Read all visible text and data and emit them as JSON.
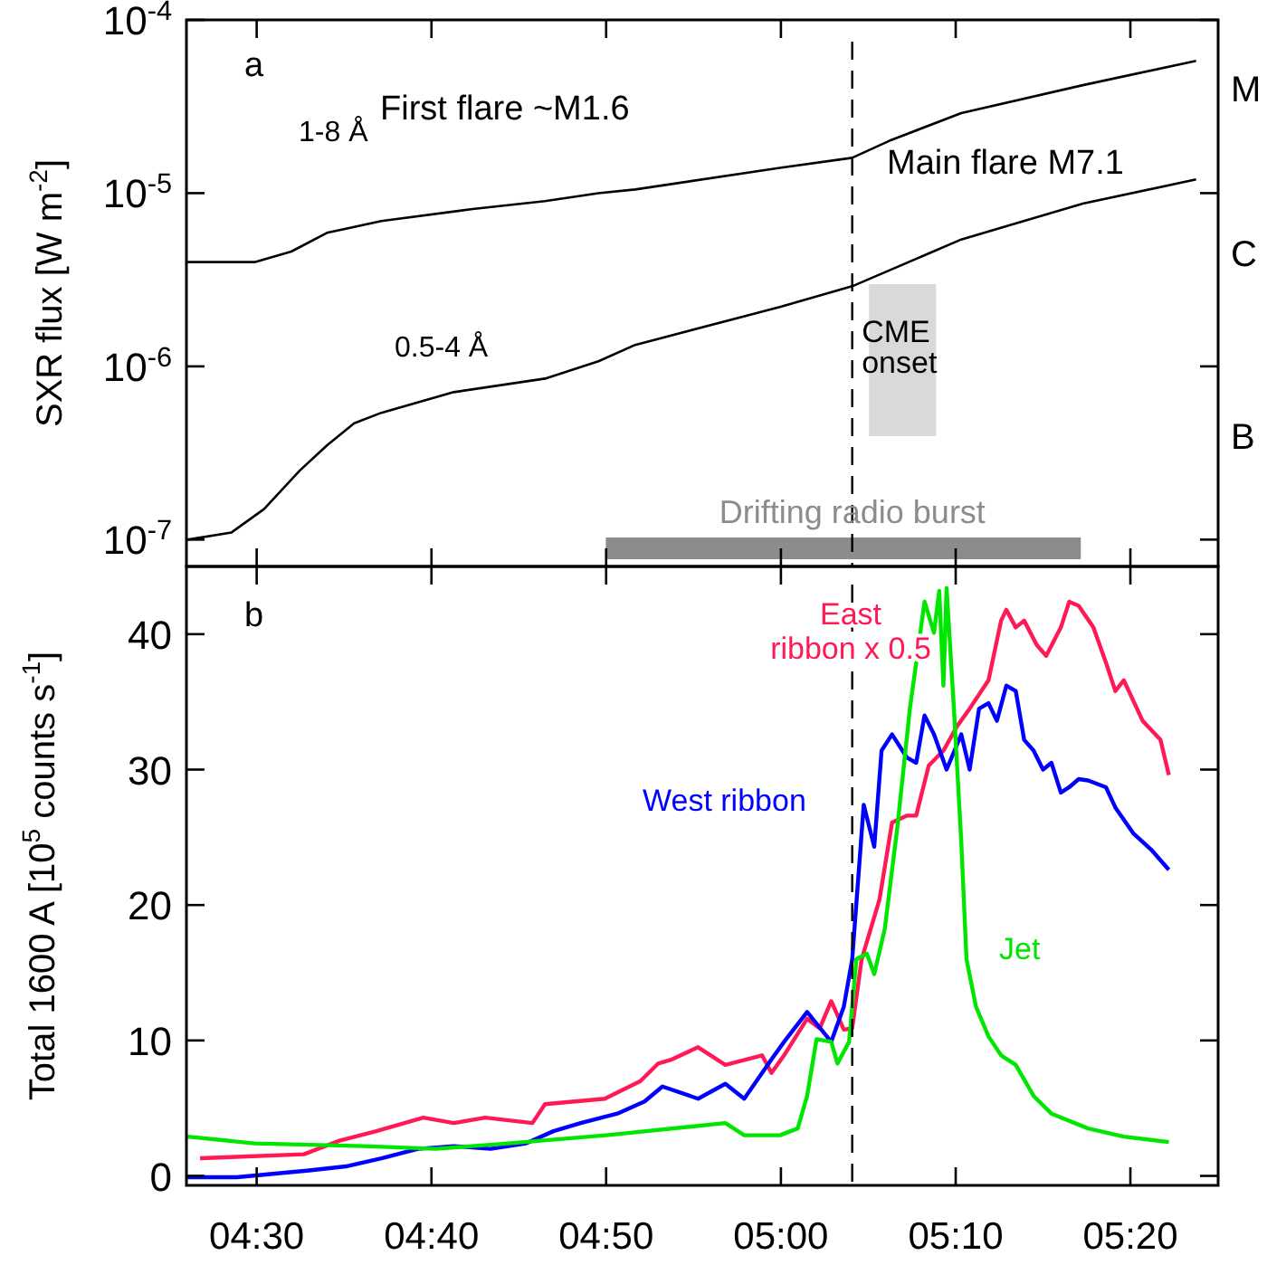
{
  "chart_data": [
    {
      "type": "line",
      "ylabel": "SXR flux [W m$^{-2}$]",
      "log": "y",
      "tick_labels": "y",
      "xlim": [
        4.433,
        5.417
      ],
      "xticks": [
        {
          "value": 4.5,
          "label": null
        },
        {
          "value": 4.6667,
          "label": null
        },
        {
          "value": 4.8333,
          "label": null
        },
        {
          "value": 5,
          "label": null
        },
        {
          "value": 5.1667,
          "label": null
        },
        {
          "value": 5.3333,
          "label": null
        }
      ],
      "ylim": [
        7e-08,
        0.0001
      ],
      "yticks": [
        {
          "value": 1e-07,
          "label": "10$^{-7}$"
        },
        {
          "value": 1e-06,
          "label": "10$^{-6}$"
        },
        {
          "value": 1e-05,
          "label": "10$^{-5}$"
        },
        {
          "value": 0.0001,
          "label": "10$^{-4}$"
        }
      ],
      "annotations": [
        "a",
        "First flare ~M1.6",
        "Main flare M7.1",
        "M",
        "C",
        "B"
      ],
      "ref_lines": [
        {
          "axis": "x",
          "value": 5.068,
          "line_style": "dashed",
          "color": "#000000"
        }
      ],
      "bands": [
        {
          "axis": "x",
          "from": 5.084,
          "to": 5.148,
          "label": "CME onset",
          "color": "#d9d9d9"
        }
      ],
      "series": [
        {
          "name": "1-8 Å",
          "color": "#000000",
          "x": [
            4.434,
            4.498,
            4.533,
            4.567,
            4.619,
            4.706,
            4.775,
            4.826,
            4.861,
            4.999,
            5.068,
            5.103,
            5.172,
            5.288,
            5.396
          ],
          "values": [
            4e-06,
            4e-06,
            4.6e-06,
            5.9e-06,
            6.9e-06,
            8.1e-06,
            9e-06,
            1e-05,
            1.05e-05,
            1.4e-05,
            1.6e-05,
            2e-05,
            2.9e-05,
            4.2e-05,
            5.8e-05
          ]
        },
        {
          "name": "0.5-4 Å",
          "color": "#000000",
          "x": [
            4.434,
            4.476,
            4.507,
            4.541,
            4.567,
            4.593,
            4.619,
            4.688,
            4.775,
            4.826,
            4.861,
            4.999,
            5.068,
            5.172,
            5.288,
            5.396
          ],
          "values": [
            1e-07,
            1.1e-07,
            1.5e-07,
            2.5e-07,
            3.5e-07,
            4.7e-07,
            5.4e-07,
            7.1e-07,
            8.5e-07,
            1.07e-06,
            1.33e-06,
            2.2e-06,
            2.9e-06,
            5.4e-06,
            8.7e-06,
            1.2e-05
          ]
        },
        {
          "name": "Drifting radio burst",
          "color": "#8c8c8c",
          "x": [
            4.833,
            5.286
          ],
          "values": [
            8.9e-08,
            8.9e-08
          ]
        }
      ]
    },
    {
      "type": "line",
      "ylabel": "Total 1600 A [10$^{5}$ counts s$^{-1}$]",
      "xlim": [
        4.433,
        5.417
      ],
      "xticks": [
        {
          "value": 4.5,
          "label": "04:30"
        },
        {
          "value": 4.6667,
          "label": "04:40"
        },
        {
          "value": 4.8333,
          "label": "04:50"
        },
        {
          "value": 5,
          "label": "05:00"
        },
        {
          "value": 5.1667,
          "label": "05:10"
        },
        {
          "value": 5.3333,
          "label": "05:20"
        }
      ],
      "ylim": [
        -0.7,
        45
      ],
      "yticks": [
        0,
        10,
        20,
        30,
        40
      ],
      "annotations": [
        "b"
      ],
      "ref_lines": [
        {
          "axis": "x",
          "value": 5.068,
          "line_style": "dashed",
          "color": "#000000"
        }
      ],
      "series": [
        {
          "name": "East ribbon x 0.5",
          "color": "#ff1a55",
          "x": [
            4.446,
            4.545,
            4.579,
            4.614,
            4.659,
            4.688,
            4.718,
            4.763,
            4.775,
            4.832,
            4.866,
            4.883,
            4.896,
            4.921,
            4.947,
            4.982,
            4.991,
            5.003,
            5.025,
            5.037,
            5.048,
            5.06,
            5.068,
            5.077,
            5.094,
            5.106,
            5.12,
            5.129,
            5.141,
            5.155,
            5.168,
            5.18,
            5.198,
            5.21,
            5.215,
            5.224,
            5.232,
            5.244,
            5.253,
            5.267,
            5.275,
            5.284,
            5.298,
            5.31,
            5.319,
            5.327,
            5.345,
            5.362,
            5.37
          ],
          "values": [
            1.3,
            1.6,
            2.6,
            3.3,
            4.3,
            3.9,
            4.3,
            3.9,
            5.3,
            5.7,
            7.0,
            8.3,
            8.6,
            9.5,
            8.2,
            8.9,
            7.6,
            8.9,
            11.6,
            10.9,
            12.9,
            10.8,
            10.9,
            16.0,
            20.4,
            26.1,
            26.6,
            26.6,
            30.3,
            31.4,
            33.2,
            34.5,
            36.6,
            41.0,
            41.8,
            40.5,
            41.0,
            39.2,
            38.4,
            40.5,
            42.4,
            42.1,
            40.5,
            37.9,
            35.8,
            36.6,
            33.6,
            32.2,
            29.6
          ]
        },
        {
          "name": "West ribbon",
          "color": "#0000ff",
          "x": [
            4.434,
            4.481,
            4.55,
            4.585,
            4.619,
            4.654,
            4.688,
            4.723,
            4.757,
            4.783,
            4.809,
            4.844,
            4.87,
            4.887,
            4.921,
            4.947,
            4.965,
            4.991,
            5.003,
            5.025,
            5.048,
            5.06,
            5.068,
            5.079,
            5.089,
            5.096,
            5.106,
            5.12,
            5.129,
            5.137,
            5.146,
            5.158,
            5.172,
            5.18,
            5.189,
            5.198,
            5.206,
            5.215,
            5.224,
            5.232,
            5.241,
            5.25,
            5.258,
            5.267,
            5.275,
            5.284,
            5.293,
            5.31,
            5.319,
            5.336,
            5.353,
            5.37
          ],
          "values": [
            -0.1,
            -0.1,
            0.4,
            0.7,
            1.3,
            2.0,
            2.2,
            2.0,
            2.4,
            3.3,
            3.9,
            4.6,
            5.5,
            6.6,
            5.7,
            6.8,
            5.7,
            8.6,
            9.9,
            12.1,
            9.9,
            12.5,
            16.0,
            27.4,
            24.3,
            31.4,
            32.6,
            30.9,
            30.5,
            34.0,
            32.6,
            30.0,
            32.6,
            30.0,
            34.5,
            34.9,
            33.6,
            36.2,
            35.8,
            32.2,
            31.4,
            30.0,
            30.5,
            28.3,
            28.7,
            29.3,
            29.2,
            28.7,
            27.2,
            25.3,
            24.1,
            22.6
          ]
        },
        {
          "name": "Jet",
          "color": "#00e600",
          "x": [
            4.434,
            4.498,
            4.602,
            4.671,
            4.74,
            4.833,
            4.947,
            4.965,
            4.999,
            5.016,
            5.025,
            5.034,
            5.048,
            5.054,
            5.065,
            5.072,
            5.082,
            5.089,
            5.099,
            5.111,
            5.123,
            5.137,
            5.146,
            5.151,
            5.155,
            5.158,
            5.165,
            5.172,
            5.177,
            5.186,
            5.198,
            5.21,
            5.224,
            5.241,
            5.258,
            5.293,
            5.327,
            5.37
          ],
          "values": [
            2.9,
            2.4,
            2.2,
            2.0,
            2.4,
            3.0,
            3.9,
            3.0,
            3.0,
            3.5,
            5.9,
            10.1,
            9.9,
            8.3,
            9.9,
            16.0,
            16.4,
            14.9,
            18.2,
            25.7,
            34.5,
            42.4,
            40.1,
            43.2,
            36.2,
            43.4,
            34.5,
            24.7,
            16.0,
            12.5,
            10.3,
            8.9,
            8.2,
            5.9,
            4.6,
            3.5,
            2.9,
            2.5
          ]
        }
      ]
    }
  ]
}
